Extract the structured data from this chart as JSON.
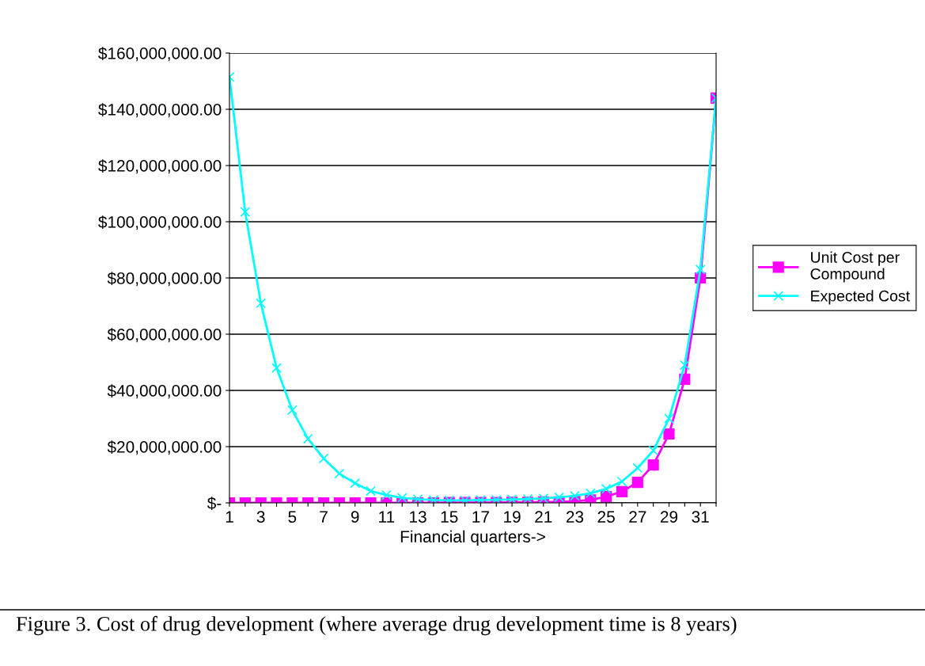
{
  "chart_data": {
    "type": "line",
    "xlabel": "Financial quarters->",
    "categories": [
      "1",
      null,
      "3",
      null,
      "5",
      null,
      "7",
      null,
      "9",
      null,
      "11",
      null,
      "13",
      null,
      "15",
      null,
      "17",
      null,
      "19",
      null,
      "21",
      null,
      "23",
      null,
      "25",
      null,
      "27",
      null,
      "29",
      null,
      "31",
      null
    ],
    "series": [
      {
        "name": "Unit Cost per Compound",
        "color": "#ff00ff",
        "marker": "square",
        "values": [
          0,
          0,
          0,
          0,
          0,
          0,
          0,
          0,
          0,
          0,
          0,
          0,
          0,
          0,
          100000,
          100000,
          100000,
          100000,
          200000,
          200000,
          300000,
          300000,
          600000,
          1000000,
          2200000,
          4000000,
          7300000,
          13500000,
          24500000,
          44000000,
          80000000,
          144000000
        ]
      },
      {
        "name": "Expected Cost",
        "color": "#00ffff",
        "marker": "cross",
        "values": [
          151500000,
          103500000,
          71000000,
          48000000,
          33000000,
          22800000,
          15800000,
          10400000,
          7000000,
          4200000,
          2800000,
          1800000,
          1300000,
          1000000,
          900000,
          900000,
          1000000,
          1100000,
          1200000,
          1400000,
          1600000,
          2000000,
          2500000,
          3400000,
          5000000,
          7600000,
          12400000,
          18600000,
          30000000,
          49000000,
          83000000,
          144000000
        ]
      }
    ],
    "ylim": [
      0,
      160000000
    ],
    "yticks": [
      {
        "value": 0,
        "label": "$-"
      },
      {
        "value": 20000000,
        "label": "$20,000,000.00"
      },
      {
        "value": 40000000,
        "label": "$40,000,000.00"
      },
      {
        "value": 60000000,
        "label": "$60,000,000.00"
      },
      {
        "value": 80000000,
        "label": "$80,000,000.00"
      },
      {
        "value": 100000000,
        "label": "$100,000,000.00"
      },
      {
        "value": 120000000,
        "label": "$120,000,000.00"
      },
      {
        "value": 140000000,
        "label": "$140,000,000.00"
      },
      {
        "value": 160000000,
        "label": "$160,000,000.00"
      }
    ],
    "grid": "y",
    "legend": "right",
    "line_style": "solid",
    "annotations": [
      "Figure 3. Cost of drug development (where average drug development time is 8 years)"
    ]
  }
}
